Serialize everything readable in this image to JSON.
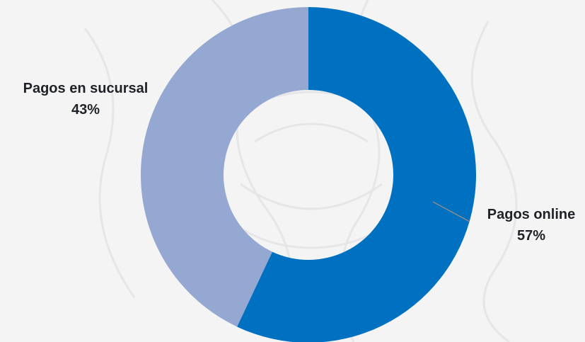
{
  "chart_data": {
    "type": "pie",
    "variant": "donut",
    "title": "",
    "slices": [
      {
        "label": "Pagos online",
        "value": 57,
        "display": "57%",
        "color": "#0070c0"
      },
      {
        "label": "Pagos en sucursal",
        "value": 43,
        "display": "43%",
        "color": "#95a8d1"
      }
    ],
    "start_angle_deg": 0,
    "direction": "clockwise",
    "leader_line_on": "Pagos online"
  },
  "background": {
    "color": "#f4f4f5",
    "texture": "faint engraved figure"
  }
}
